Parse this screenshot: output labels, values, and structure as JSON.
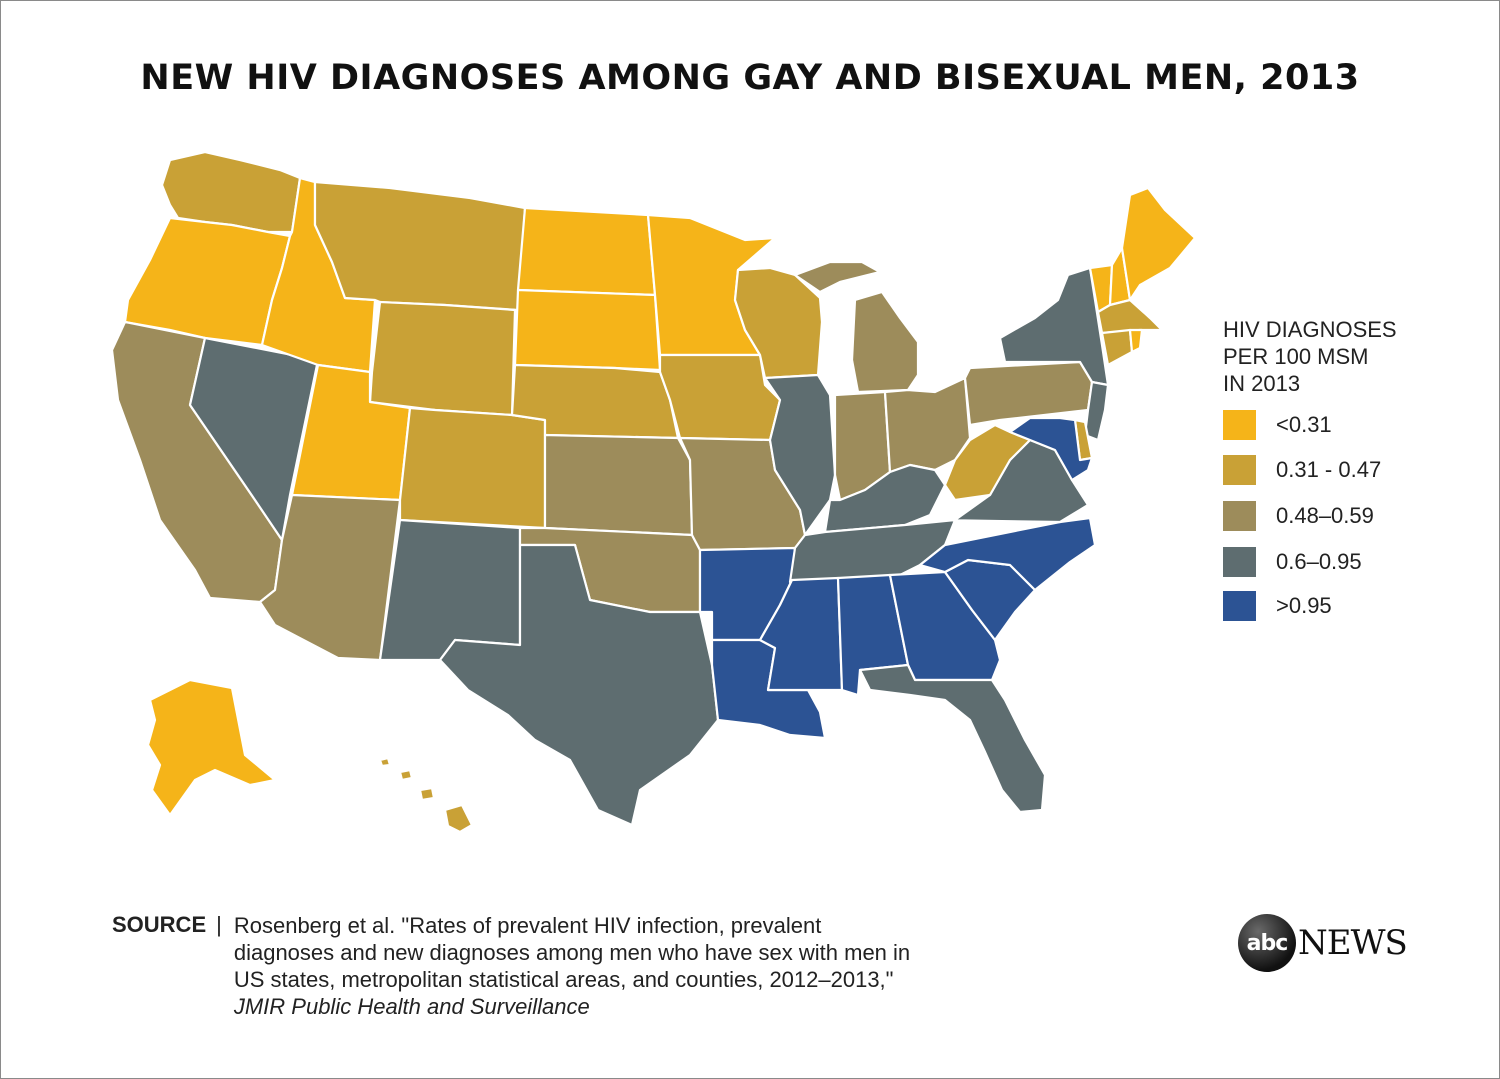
{
  "title": "NEW HIV DIAGNOSES AMONG GAY AND BISEXUAL MEN, 2013",
  "legend": {
    "title_lines": [
      "HIV DIAGNOSES",
      "PER 100 MSM",
      "IN 2013"
    ],
    "items": [
      {
        "label": "<0.31",
        "color": "#f5b419"
      },
      {
        "label": "0.31 - 0.47",
        "color": "#c9a136"
      },
      {
        "label": "0.48–0.59",
        "color": "#9d8c5b"
      },
      {
        "label": "0.6–0.95",
        "color": "#5e6d70"
      },
      {
        "label": ">0.95",
        "color": "#2c5394"
      }
    ]
  },
  "states": [
    {
      "id": "WA",
      "cat": 1
    },
    {
      "id": "OR",
      "cat": 0
    },
    {
      "id": "CA",
      "cat": 2
    },
    {
      "id": "NV",
      "cat": 3
    },
    {
      "id": "ID",
      "cat": 0
    },
    {
      "id": "MT",
      "cat": 1
    },
    {
      "id": "WY",
      "cat": 1
    },
    {
      "id": "UT",
      "cat": 0
    },
    {
      "id": "AZ",
      "cat": 2
    },
    {
      "id": "CO",
      "cat": 1
    },
    {
      "id": "NM",
      "cat": 3
    },
    {
      "id": "ND",
      "cat": 0
    },
    {
      "id": "SD",
      "cat": 0
    },
    {
      "id": "NE",
      "cat": 1
    },
    {
      "id": "KS",
      "cat": 2
    },
    {
      "id": "OK",
      "cat": 2
    },
    {
      "id": "TX",
      "cat": 3
    },
    {
      "id": "MN",
      "cat": 0
    },
    {
      "id": "IA",
      "cat": 1
    },
    {
      "id": "MO",
      "cat": 2
    },
    {
      "id": "AR",
      "cat": 4
    },
    {
      "id": "LA",
      "cat": 4
    },
    {
      "id": "WI",
      "cat": 1
    },
    {
      "id": "IL",
      "cat": 3
    },
    {
      "id": "MI",
      "cat": 2
    },
    {
      "id": "IN",
      "cat": 2
    },
    {
      "id": "OH",
      "cat": 2
    },
    {
      "id": "KY",
      "cat": 3
    },
    {
      "id": "TN",
      "cat": 3
    },
    {
      "id": "MS",
      "cat": 4
    },
    {
      "id": "AL",
      "cat": 4
    },
    {
      "id": "GA",
      "cat": 4
    },
    {
      "id": "FL",
      "cat": 3
    },
    {
      "id": "SC",
      "cat": 4
    },
    {
      "id": "NC",
      "cat": 4
    },
    {
      "id": "VA",
      "cat": 3
    },
    {
      "id": "WV",
      "cat": 1
    },
    {
      "id": "PA",
      "cat": 2
    },
    {
      "id": "NY",
      "cat": 3
    },
    {
      "id": "VT",
      "cat": 0
    },
    {
      "id": "NH",
      "cat": 0
    },
    {
      "id": "ME",
      "cat": 0
    },
    {
      "id": "MA",
      "cat": 1
    },
    {
      "id": "CT",
      "cat": 1
    },
    {
      "id": "RI",
      "cat": 0
    },
    {
      "id": "NJ",
      "cat": 3
    },
    {
      "id": "DE",
      "cat": 1
    },
    {
      "id": "MD",
      "cat": 4
    },
    {
      "id": "AK",
      "cat": 0
    },
    {
      "id": "HI",
      "cat": 1
    }
  ],
  "source": {
    "key": "SOURCE",
    "separator": "|",
    "lines": [
      "Rosenberg et al. \"Rates of prevalent HIV infection, prevalent",
      "diagnoses and new diagnoses among men who have sex with men in",
      "US states, metropolitan statistical areas, and counties, 2012–2013,\""
    ],
    "journal": "JMIR Public Health and Surveillance"
  },
  "logo": {
    "circle": "abc",
    "word": "NEWS"
  }
}
